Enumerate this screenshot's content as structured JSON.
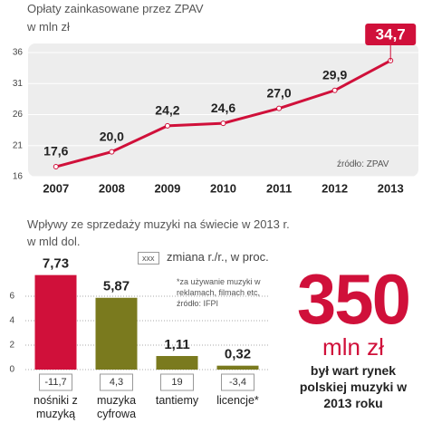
{
  "chart_data": [
    {
      "type": "line",
      "title": "Opłaty zainkasowane przez ZPAV",
      "subtitle": "w mln zł",
      "categories": [
        "2007",
        "2008",
        "2009",
        "2010",
        "2011",
        "2012",
        "2013"
      ],
      "values": [
        17.6,
        20.0,
        24.2,
        24.6,
        27.0,
        29.9,
        34.7
      ],
      "value_labels": [
        "17,6",
        "20,0",
        "24,2",
        "24,6",
        "27,0",
        "29,9",
        "34,7"
      ],
      "color": "#d0103a",
      "ylim": [
        16,
        36
      ],
      "yticks": [
        16,
        21,
        26,
        31,
        36
      ],
      "grid": true,
      "source": "źródło: ZPAV"
    },
    {
      "type": "bar",
      "title": "Wpływy ze sprzedaży muzyki na świecie w 2013 r.",
      "subtitle": "w mld dol.",
      "categories": [
        "nośniki z muzyką",
        "muzyka cyfrowa",
        "tantiemy",
        "licencje*"
      ],
      "values": [
        7.73,
        5.87,
        1.11,
        0.32
      ],
      "value_labels": [
        "7,73",
        "5,87",
        "1,11",
        "0,32"
      ],
      "colors": [
        "#d0103a",
        "#7a7a1e",
        "#7a7a1e",
        "#7a7a1e"
      ],
      "changes": [
        -11.7,
        4.3,
        19,
        -3.4
      ],
      "change_labels": [
        "-11,7",
        "4,3",
        "19",
        "-3,4"
      ],
      "legend_sample": "xxx",
      "legend_label": "zmiana r./r., w proc.",
      "note": "*za używanie muzyki w reklamach, filmach etc, źródło: IFPI",
      "ylim": [
        0,
        8
      ],
      "yticks": [
        0,
        2,
        4,
        6
      ],
      "grid": true
    }
  ],
  "callout": {
    "number": 350,
    "unit": "mln zł",
    "text": "był wart rynek polskiej muzyki w 2013 roku"
  }
}
